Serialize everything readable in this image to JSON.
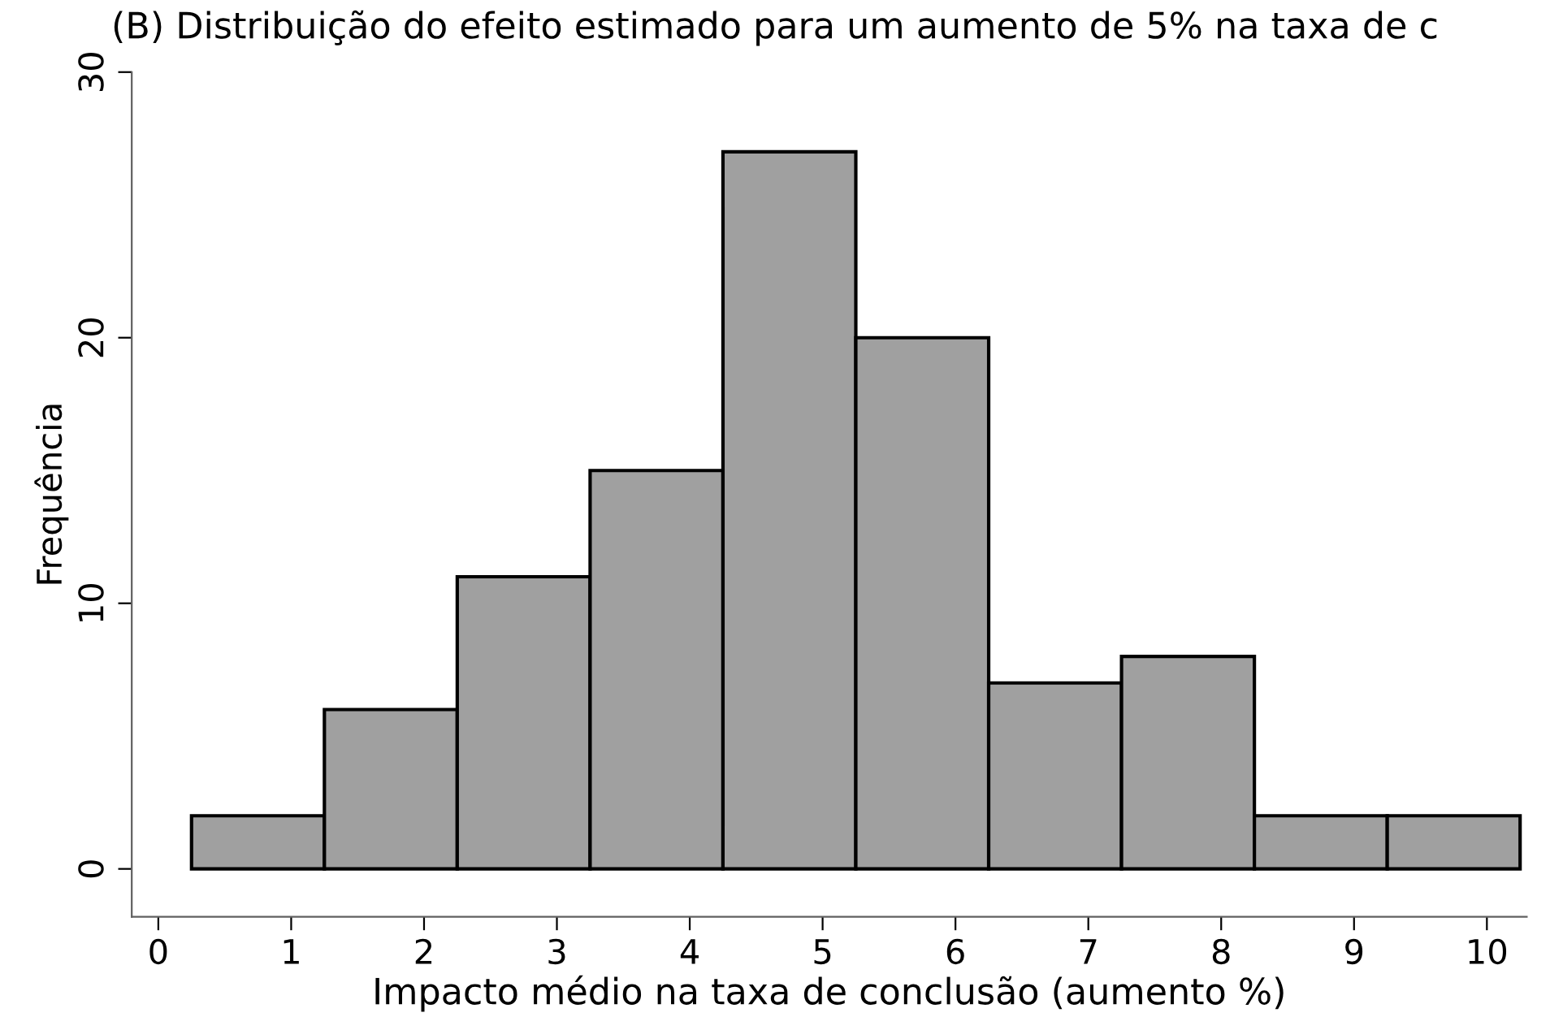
{
  "chart_data": {
    "type": "histogram",
    "title": "(B) Distribuição do efeito estimado para um aumento de 5% na taxa de c",
    "xlabel": "Impacto médio na taxa de conclusão (aumento %)",
    "ylabel": "Frequência",
    "bins": [
      0.25,
      1.25,
      2.25,
      3.25,
      4.25,
      5.25,
      6.25,
      7.25,
      8.25,
      9.25,
      10.25
    ],
    "values": [
      2,
      6,
      11,
      15,
      27,
      20,
      7,
      8,
      2,
      2
    ],
    "color": "#a0a0a0",
    "xlim": [
      -0.2,
      10.3
    ],
    "ylim": [
      -1.8,
      30
    ],
    "xticks": [
      0,
      1,
      2,
      3,
      4,
      5,
      6,
      7,
      8,
      9,
      10
    ],
    "yticks": [
      0,
      10,
      20,
      30
    ],
    "grid": false,
    "legend": false
  }
}
